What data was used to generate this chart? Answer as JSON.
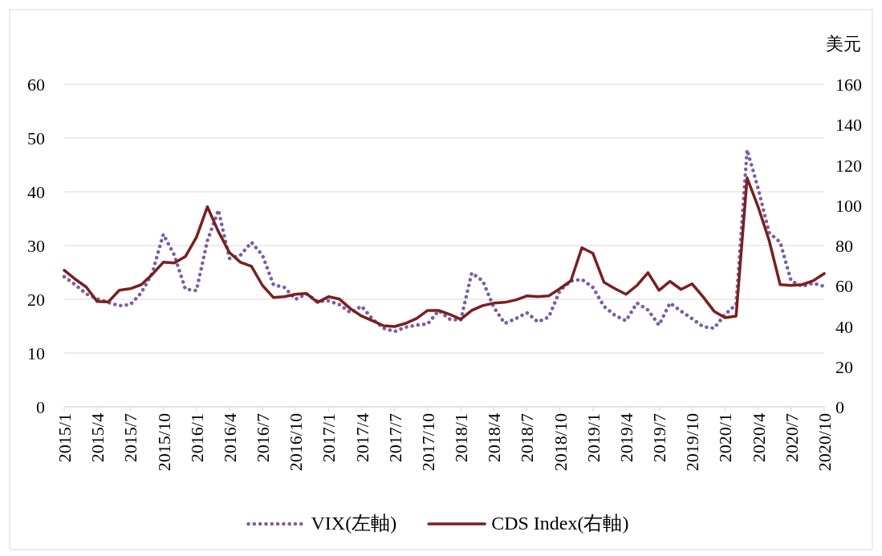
{
  "chart_data": {
    "type": "line",
    "categories": [
      "2015/1",
      null,
      null,
      "2015/4",
      null,
      null,
      "2015/7",
      null,
      null,
      "2015/10",
      null,
      null,
      "2016/1",
      null,
      null,
      "2016/4",
      null,
      null,
      "2016/7",
      null,
      null,
      "2016/10",
      null,
      null,
      "2017/1",
      null,
      null,
      "2017/4",
      null,
      null,
      "2017/7",
      null,
      null,
      "2017/10",
      null,
      null,
      "2018/1",
      null,
      null,
      "2018/4",
      null,
      null,
      "2018/7",
      null,
      null,
      "2018/10",
      null,
      null,
      "2019/1",
      null,
      null,
      "2019/4",
      null,
      null,
      "2019/7",
      null,
      null,
      "2019/10",
      null,
      null,
      "2020/1",
      null,
      null,
      "2020/4",
      null,
      null,
      "2020/7",
      null,
      null,
      "2020/10"
    ],
    "series": [
      {
        "name": "VIX(左軸)",
        "color": "#7b5ea7",
        "line_style": "dotted",
        "values": [
          24.2,
          22.7,
          21,
          20.1,
          19.4,
          18.8,
          19,
          21.2,
          24.9,
          32.1,
          28.2,
          21.9,
          21.6,
          30.9,
          36.6,
          27.6,
          28.2,
          30.6,
          28.2,
          22.7,
          22.2,
          20,
          21,
          19.6,
          19.7,
          19,
          17.5,
          18.7,
          16.3,
          14.6,
          14,
          14.8,
          15.2,
          15.4,
          17.9,
          16.3,
          16.1,
          24.9,
          23.4,
          18.5,
          15.5,
          16.4,
          17.5,
          15.8,
          16.7,
          21.6,
          23.4,
          23.7,
          22.2,
          18.7,
          17,
          16,
          19.3,
          18,
          15.2,
          19.3,
          17.8,
          16.4,
          14.9,
          14.6,
          17.2,
          19,
          47.8,
          40.6,
          32.4,
          30.6,
          23.4,
          22.4,
          23,
          22.4
        ]
      },
      {
        "name": "CDS Index(右軸)",
        "color": "#7b1f1f",
        "line_style": "solid",
        "axis": "y2",
        "values": [
          67.7,
          63.3,
          59.4,
          52.2,
          52,
          57.8,
          58.6,
          60.6,
          65.7,
          71.7,
          71.3,
          74.5,
          84,
          99.2,
          86.9,
          76.5,
          71.7,
          69.7,
          60.2,
          54.2,
          54.6,
          55.8,
          56.2,
          51.8,
          54.6,
          53.4,
          48.6,
          45,
          42.6,
          40.2,
          39.8,
          41.4,
          43.8,
          47.8,
          47.8,
          45.8,
          43.4,
          47.8,
          50.2,
          51.4,
          51.8,
          53,
          55,
          54.6,
          55,
          58.6,
          62.5,
          78.9,
          76.1,
          61.8,
          58.6,
          55.8,
          60.2,
          66.5,
          57.8,
          62.2,
          58.2,
          61,
          54.6,
          47.4,
          44.2,
          45,
          113.5,
          99.2,
          82.5,
          60.6,
          60.2,
          60.6,
          62.5,
          66.1
        ]
      }
    ],
    "ylim": [
      0,
      60
    ],
    "yticks": [
      0,
      10,
      20,
      30,
      40,
      50,
      60
    ],
    "y2lim": [
      0,
      160
    ],
    "y2ticks": [
      0,
      20,
      40,
      60,
      80,
      100,
      120,
      140,
      160
    ],
    "y2label": "美元",
    "grid": "y",
    "legend": "bottom"
  }
}
